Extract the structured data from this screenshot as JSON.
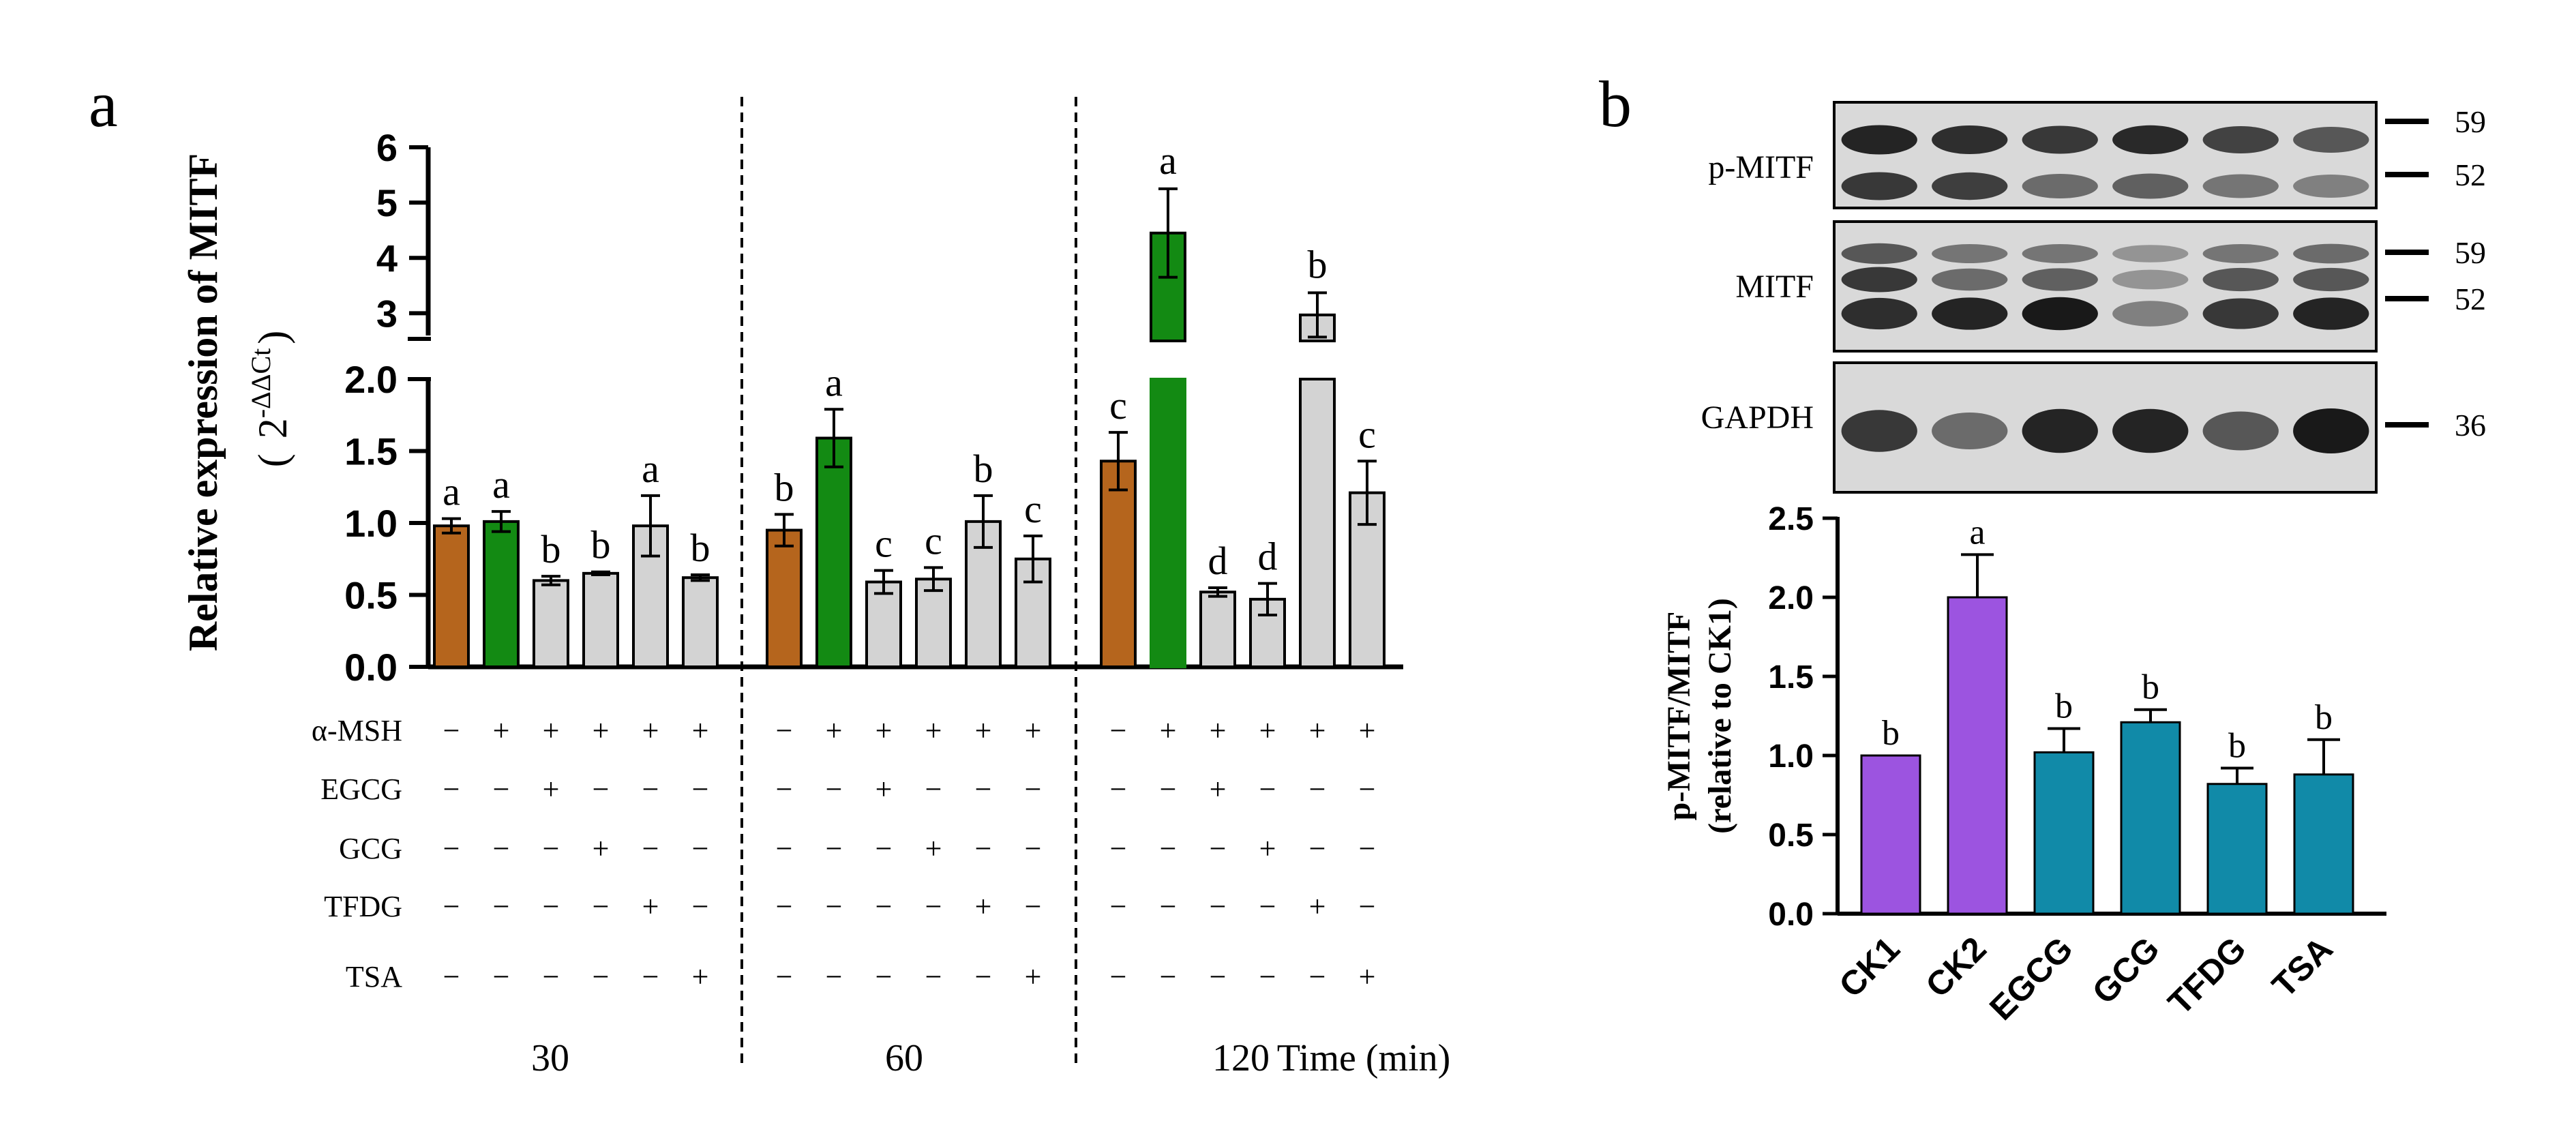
{
  "panel_a_letter": "a",
  "panel_b_letter": "b",
  "chart_data": [
    {
      "type": "bar",
      "panel": "a",
      "title": "",
      "ylabel": "Relative expression of MITF",
      "ylabel_formula": {
        "open": "(",
        "base": "2",
        "sup": "-ΔΔCt",
        "close": ")"
      },
      "ylim_lower": [
        0,
        2.0
      ],
      "ylim_upper": [
        2.5,
        6
      ],
      "yticks_lower": [
        "0.0",
        "0.5",
        "1.0",
        "1.5",
        "2.0"
      ],
      "yticks_upper": [
        "3",
        "4",
        "5",
        "6"
      ],
      "xlabel": "Time (min)",
      "time_groups": [
        "30",
        "60",
        "120"
      ],
      "colors": {
        "ck1": "#b5651d",
        "ck2": "#138a13",
        "treat": "#d3d3d3"
      },
      "treatments": [
        {
          "name": "α-MSH",
          "signs": [
            "−",
            "+",
            "+",
            "+",
            "+",
            "+"
          ]
        },
        {
          "name": "EGCG",
          "signs": [
            "−",
            "−",
            "+",
            "−",
            "−",
            "−"
          ]
        },
        {
          "name": "GCG",
          "signs": [
            "−",
            "−",
            "−",
            "+",
            "−",
            "−"
          ]
        },
        {
          "name": "TFDG",
          "signs": [
            "−",
            "−",
            "−",
            "−",
            "+",
            "−"
          ]
        },
        {
          "name": "TSA",
          "signs": [
            "−",
            "−",
            "−",
            "−",
            "−",
            "+"
          ]
        }
      ],
      "groups": [
        {
          "time": "30",
          "values": [
            0.98,
            1.01,
            0.6,
            0.65,
            0.98,
            0.62
          ],
          "errors": [
            0.05,
            0.07,
            0.03,
            0.01,
            0.21,
            0.02
          ],
          "letters": [
            "a",
            "a",
            "b",
            "b",
            "a",
            "b"
          ]
        },
        {
          "time": "60",
          "values": [
            0.95,
            1.59,
            0.59,
            0.61,
            1.01,
            0.75
          ],
          "errors": [
            0.11,
            0.2,
            0.08,
            0.08,
            0.18,
            0.16
          ],
          "letters": [
            "b",
            "a",
            "c",
            "c",
            "b",
            "c"
          ]
        },
        {
          "time": "120",
          "values": [
            1.43,
            4.45,
            0.52,
            0.47,
            2.97,
            1.21
          ],
          "errors": [
            0.2,
            0.8,
            0.03,
            0.11,
            0.4,
            0.22
          ],
          "letters": [
            "c",
            "a",
            "d",
            "d",
            "b",
            "c"
          ]
        }
      ]
    },
    {
      "type": "bar",
      "panel": "b",
      "title": "",
      "ylabel": "p-MITF/MITF",
      "ylabel2": "(relative to CK1)",
      "ylim": [
        0,
        2.5
      ],
      "yticks": [
        "0.0",
        "0.5",
        "1.0",
        "1.5",
        "2.0",
        "2.5"
      ],
      "categories": [
        "CK1",
        "CK2",
        "EGCG",
        "GCG",
        "TFDG",
        "TSA"
      ],
      "values": [
        1.0,
        2.0,
        1.02,
        1.21,
        0.82,
        0.88
      ],
      "errors": [
        0.0,
        0.27,
        0.15,
        0.08,
        0.1,
        0.22
      ],
      "letters": [
        "b",
        "a",
        "b",
        "b",
        "b",
        "b"
      ],
      "colors": [
        "#9c54e0",
        "#9c54e0",
        "#118aa8",
        "#118aa8",
        "#118aa8",
        "#118aa8"
      ]
    }
  ],
  "western_blot": {
    "rows": [
      {
        "label": "p-MITF",
        "markers": [
          "59",
          "52"
        ]
      },
      {
        "label": "MITF",
        "markers": [
          "59",
          "52"
        ]
      },
      {
        "label": "GAPDH",
        "markers": [
          "36"
        ]
      }
    ]
  }
}
